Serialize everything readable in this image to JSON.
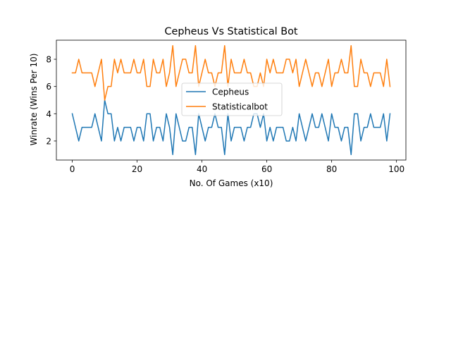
{
  "chart_data": {
    "type": "line",
    "title": "Cepheus Vs Statistical Bot",
    "xlabel": "No. Of Games (x10)",
    "ylabel": "Winrate (Wins Per 10)",
    "xlim": [
      -4.9,
      102.9
    ],
    "ylim": [
      0.6,
      9.4
    ],
    "xticks": [
      0,
      20,
      40,
      60,
      80,
      100
    ],
    "yticks": [
      2,
      4,
      6,
      8
    ],
    "grid": false,
    "legend_position": "center",
    "x": [
      0,
      1,
      2,
      3,
      4,
      5,
      6,
      7,
      8,
      9,
      10,
      11,
      12,
      13,
      14,
      15,
      16,
      17,
      18,
      19,
      20,
      21,
      22,
      23,
      24,
      25,
      26,
      27,
      28,
      29,
      30,
      31,
      32,
      33,
      34,
      35,
      36,
      37,
      38,
      39,
      40,
      41,
      42,
      43,
      44,
      45,
      46,
      47,
      48,
      49,
      50,
      51,
      52,
      53,
      54,
      55,
      56,
      57,
      58,
      59,
      60,
      61,
      62,
      63,
      64,
      65,
      66,
      67,
      68,
      69,
      70,
      71,
      72,
      73,
      74,
      75,
      76,
      77,
      78,
      79,
      80,
      81,
      82,
      83,
      84,
      85,
      86,
      87,
      88,
      89,
      90,
      91,
      92,
      93,
      94,
      95,
      96,
      97,
      98
    ],
    "series": [
      {
        "name": "Cepheus",
        "color": "#1f77b4",
        "values": [
          4,
          3,
          2,
          3,
          3,
          3,
          3,
          4,
          3,
          2,
          5,
          4,
          4,
          2,
          3,
          2,
          3,
          3,
          3,
          2,
          3,
          3,
          2,
          4,
          4,
          2,
          3,
          3,
          2,
          4,
          3,
          1,
          4,
          3,
          2,
          2,
          3,
          3,
          1,
          4,
          3,
          2,
          3,
          3,
          4,
          3,
          3,
          1,
          4,
          2,
          3,
          3,
          3,
          2,
          3,
          3,
          4,
          4,
          3,
          4,
          2,
          3,
          2,
          3,
          3,
          3,
          2,
          2,
          3,
          2,
          4,
          3,
          2,
          3,
          4,
          3,
          3,
          4,
          3,
          2,
          4,
          3,
          3,
          2,
          3,
          3,
          1,
          4,
          4,
          2,
          3,
          3,
          4,
          3,
          3,
          3,
          4,
          2,
          4
        ]
      },
      {
        "name": "Statisticalbot",
        "color": "#ff7f0e",
        "values": [
          7,
          7,
          8,
          7,
          7,
          7,
          7,
          6,
          7,
          8,
          5,
          6,
          6,
          8,
          7,
          8,
          7,
          7,
          7,
          8,
          7,
          7,
          8,
          6,
          6,
          8,
          7,
          7,
          8,
          6,
          7,
          9,
          6,
          7,
          8,
          8,
          7,
          7,
          9,
          6,
          7,
          8,
          7,
          7,
          6,
          7,
          7,
          9,
          6,
          8,
          7,
          7,
          7,
          8,
          7,
          7,
          6,
          6,
          7,
          6,
          8,
          7,
          8,
          7,
          7,
          7,
          8,
          8,
          7,
          8,
          6,
          7,
          8,
          7,
          6,
          7,
          7,
          6,
          7,
          8,
          6,
          7,
          7,
          8,
          7,
          7,
          9,
          6,
          6,
          8,
          7,
          7,
          6,
          7,
          7,
          7,
          6,
          8,
          6
        ]
      }
    ]
  }
}
